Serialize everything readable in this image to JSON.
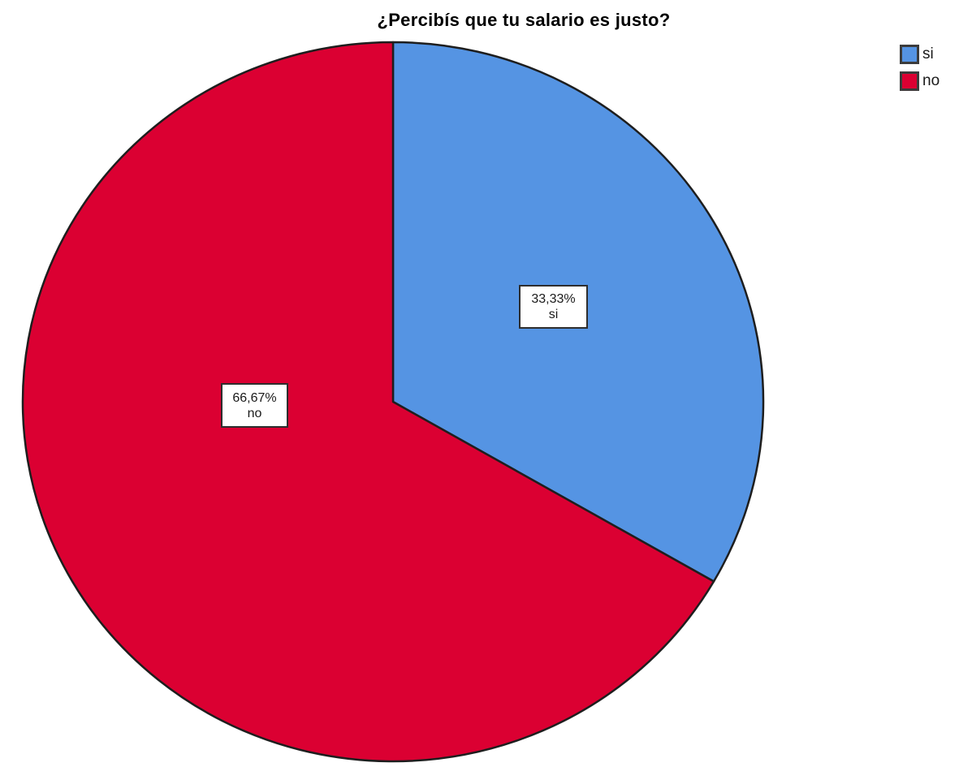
{
  "chart_data": {
    "type": "pie",
    "title": "¿Percibís que tu salario es justo?",
    "categories": [
      "si",
      "no"
    ],
    "values": [
      33.33,
      66.67
    ],
    "slices": [
      {
        "category": "si",
        "value": 33.33,
        "percent_label": "33,33%",
        "color": "#5594E3"
      },
      {
        "category": "no",
        "value": 66.67,
        "percent_label": "66,67%",
        "color": "#DB0032"
      }
    ],
    "start_angle_deg": 0,
    "direction": "clockwise",
    "legend_position": "top-right",
    "outline_color": "#1E1E1E",
    "background_color": "#FFFFFF"
  },
  "legend": {
    "items": [
      {
        "label": "si",
        "color": "#5594E3"
      },
      {
        "label": "no",
        "color": "#DB0032"
      }
    ]
  }
}
